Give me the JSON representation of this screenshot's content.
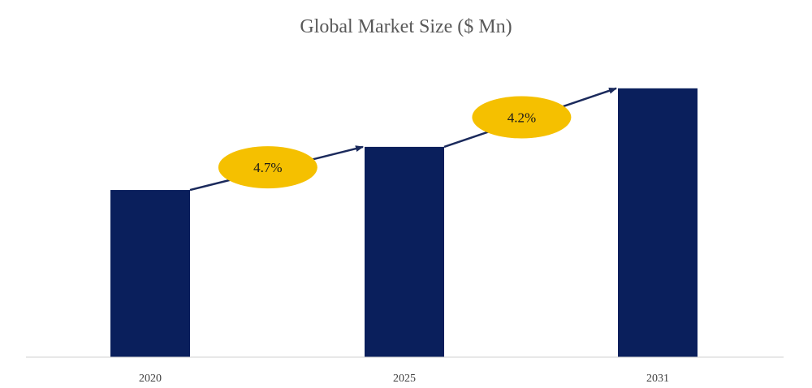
{
  "chart_data": {
    "type": "bar",
    "title": "Global Market Size ($ Mn)",
    "categories": [
      "2020",
      "2025",
      "2031"
    ],
    "values": [
      100,
      125.8,
      160.8
    ],
    "ylim": [
      0,
      168
    ],
    "xlabel": "",
    "ylabel": "",
    "grid": false,
    "legend": "none",
    "colors": {
      "bar": "#0a1f5c",
      "arrow": "#1b2a5c",
      "badge": "#f5c000",
      "axis": "#d0d0d0"
    },
    "annotations": [
      {
        "text": "4.7%",
        "from": "2020",
        "to": "2025"
      },
      {
        "text": "4.2%",
        "from": "2025",
        "to": "2031"
      }
    ]
  }
}
